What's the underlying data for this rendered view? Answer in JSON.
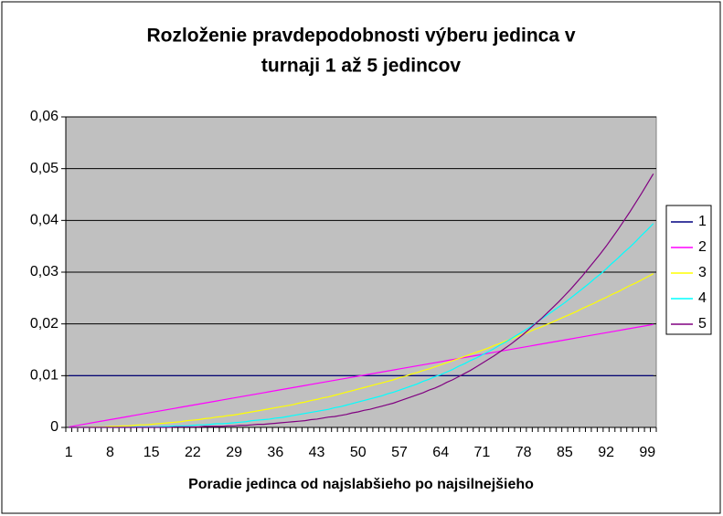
{
  "chart_data": {
    "type": "line",
    "title": [
      "Rozloženie pravdepodobnosti výberu jedinca v",
      "turnaji 1 až 5 jedincov"
    ],
    "x_label": "Poradie jedinca od najslabšieho po najsilnejšieho",
    "categories": [
      "1",
      null,
      null,
      null,
      null,
      null,
      null,
      "8",
      null,
      null,
      null,
      null,
      null,
      null,
      "15",
      null,
      null,
      null,
      null,
      null,
      null,
      "22",
      null,
      null,
      null,
      null,
      null,
      null,
      "29",
      null,
      null,
      null,
      null,
      null,
      null,
      "36",
      null,
      null,
      null,
      null,
      null,
      null,
      "43",
      null,
      null,
      null,
      null,
      null,
      null,
      "50",
      null,
      null,
      null,
      null,
      null,
      null,
      "57",
      null,
      null,
      null,
      null,
      null,
      null,
      "64",
      null,
      null,
      null,
      null,
      null,
      null,
      "71",
      null,
      null,
      null,
      null,
      null,
      null,
      "78",
      null,
      null,
      null,
      null,
      null,
      null,
      "85",
      null,
      null,
      null,
      null,
      null,
      null,
      "92",
      null,
      null,
      null,
      null,
      null,
      null,
      "99",
      null
    ],
    "ylim": [
      0,
      0.06
    ],
    "yticks": [
      0,
      {
        "value": 0.01,
        "label": "0,01"
      },
      {
        "value": 0.02,
        "label": "0,02"
      },
      {
        "value": 0.03,
        "label": "0,03"
      },
      {
        "value": 0.04,
        "label": "0,04"
      },
      {
        "value": 0.05,
        "label": "0,05"
      },
      {
        "value": 0.06,
        "label": "0,06"
      }
    ],
    "grid": true,
    "legend": "right",
    "series": [
      {
        "name": "1",
        "color": "#000080",
        "values": [
          0.01,
          0.01,
          0.01,
          0.01,
          0.01,
          0.01,
          0.01,
          0.01,
          0.01,
          0.01,
          0.01,
          0.01,
          0.01,
          0.01,
          0.01,
          0.01,
          0.01,
          0.01,
          0.01,
          0.01,
          0.01,
          0.01,
          0.01,
          0.01,
          0.01,
          0.01,
          0.01,
          0.01,
          0.01,
          0.01,
          0.01,
          0.01,
          0.01,
          0.01,
          0.01,
          0.01,
          0.01,
          0.01,
          0.01,
          0.01,
          0.01,
          0.01,
          0.01,
          0.01,
          0.01,
          0.01,
          0.01,
          0.01,
          0.01,
          0.01,
          0.01,
          0.01,
          0.01,
          0.01,
          0.01,
          0.01,
          0.01,
          0.01,
          0.01,
          0.01,
          0.01,
          0.01,
          0.01,
          0.01,
          0.01,
          0.01,
          0.01,
          0.01,
          0.01,
          0.01,
          0.01,
          0.01,
          0.01,
          0.01,
          0.01,
          0.01,
          0.01,
          0.01,
          0.01,
          0.01,
          0.01,
          0.01,
          0.01,
          0.01,
          0.01,
          0.01,
          0.01,
          0.01,
          0.01,
          0.01,
          0.01,
          0.01,
          0.01,
          0.01,
          0.01,
          0.01,
          0.01,
          0.01,
          0.01,
          0.01
        ]
      },
      {
        "name": "2",
        "color": "#ff00ff",
        "values": [
          0.0001,
          0.0003,
          0.0005,
          0.0007,
          0.0009,
          0.0011,
          0.0013,
          0.0015,
          0.0017,
          0.0019,
          0.0021,
          0.0023,
          0.0025,
          0.0027,
          0.0029,
          0.0031,
          0.0033,
          0.0035,
          0.0037,
          0.0039,
          0.0041,
          0.0043,
          0.0045,
          0.0047,
          0.0049,
          0.0051,
          0.0053,
          0.0055,
          0.0057,
          0.0059,
          0.0061,
          0.0063,
          0.0065,
          0.0067,
          0.0069,
          0.0071,
          0.0073,
          0.0075,
          0.0077,
          0.0079,
          0.0081,
          0.0083,
          0.0085,
          0.0087,
          0.0089,
          0.0091,
          0.0093,
          0.0095,
          0.0097,
          0.0099,
          0.0101,
          0.0103,
          0.0105,
          0.0107,
          0.0109,
          0.0111,
          0.0113,
          0.0115,
          0.0117,
          0.0119,
          0.0121,
          0.0123,
          0.0125,
          0.0127,
          0.0129,
          0.0131,
          0.0133,
          0.0135,
          0.0137,
          0.0139,
          0.0141,
          0.0143,
          0.0145,
          0.0147,
          0.0149,
          0.0151,
          0.0153,
          0.0155,
          0.0157,
          0.0159,
          0.0161,
          0.0163,
          0.0165,
          0.0167,
          0.0169,
          0.0171,
          0.0173,
          0.0175,
          0.0177,
          0.0179,
          0.0181,
          0.0183,
          0.0185,
          0.0187,
          0.0189,
          0.0191,
          0.0193,
          0.0195,
          0.0197,
          0.0199
        ]
      },
      {
        "name": "3",
        "color": "#ffff00",
        "values": [
          0,
          0,
          0,
          0,
          0.0001,
          0.0001,
          0.0001,
          0.0002,
          0.0002,
          0.0003,
          0.0003,
          0.0004,
          0.0005,
          0.0005,
          0.0006,
          0.0007,
          0.0008,
          0.0009,
          0.001,
          0.0011,
          0.0013,
          0.0014,
          0.0015,
          0.0017,
          0.0018,
          0.002,
          0.0021,
          0.0023,
          0.0024,
          0.0026,
          0.0028,
          0.003,
          0.0032,
          0.0034,
          0.0036,
          0.0038,
          0.004,
          0.0042,
          0.0044,
          0.0047,
          0.0049,
          0.0052,
          0.0054,
          0.0057,
          0.0059,
          0.0062,
          0.0065,
          0.0068,
          0.0071,
          0.0074,
          0.0077,
          0.008,
          0.0083,
          0.0086,
          0.0089,
          0.0092,
          0.0096,
          0.0099,
          0.0103,
          0.0106,
          0.011,
          0.0113,
          0.0117,
          0.0121,
          0.0125,
          0.0129,
          0.0133,
          0.0137,
          0.0141,
          0.0145,
          0.0149,
          0.0153,
          0.0158,
          0.0162,
          0.0167,
          0.0171,
          0.0176,
          0.018,
          0.0185,
          0.019,
          0.0194,
          0.0199,
          0.0204,
          0.0209,
          0.0214,
          0.0219,
          0.0224,
          0.023,
          0.0235,
          0.024,
          0.0246,
          0.0251,
          0.0257,
          0.0262,
          0.0268,
          0.0274,
          0.0279,
          0.0285,
          0.0291,
          0.0297
        ]
      },
      {
        "name": "4",
        "color": "#00ffff",
        "values": [
          0,
          0,
          0,
          0,
          0,
          0,
          0,
          0,
          0,
          0,
          0,
          0.0001,
          0.0001,
          0.0001,
          0.0001,
          0.0001,
          0.0002,
          0.0002,
          0.0003,
          0.0003,
          0.0003,
          0.0004,
          0.0005,
          0.0005,
          0.0006,
          0.0007,
          0.0007,
          0.0008,
          0.0009,
          0.001,
          0.0011,
          0.0013,
          0.0014,
          0.0015,
          0.0016,
          0.0018,
          0.0019,
          0.0021,
          0.0023,
          0.0025,
          0.0027,
          0.0029,
          0.0031,
          0.0033,
          0.0035,
          0.0038,
          0.004,
          0.0043,
          0.0046,
          0.0049,
          0.0052,
          0.0055,
          0.0058,
          0.0061,
          0.0065,
          0.0068,
          0.0072,
          0.0076,
          0.008,
          0.0084,
          0.0089,
          0.0093,
          0.0098,
          0.0102,
          0.0107,
          0.0112,
          0.0118,
          0.0123,
          0.0129,
          0.0134,
          0.014,
          0.0146,
          0.0152,
          0.0159,
          0.0165,
          0.0172,
          0.0179,
          0.0186,
          0.0193,
          0.0201,
          0.0209,
          0.0217,
          0.0225,
          0.0233,
          0.0241,
          0.025,
          0.0259,
          0.0268,
          0.0277,
          0.0287,
          0.0296,
          0.0306,
          0.0317,
          0.0327,
          0.0338,
          0.0348,
          0.0359,
          0.0371,
          0.0382,
          0.0394
        ]
      },
      {
        "name": "5",
        "color": "#800080",
        "values": [
          0,
          0,
          0,
          0,
          0,
          0,
          0,
          0,
          0,
          0,
          0,
          0,
          0,
          0,
          0,
          0,
          0,
          0,
          0.0001,
          0.0001,
          0.0001,
          0.0001,
          0.0001,
          0.0002,
          0.0002,
          0.0002,
          0.0002,
          0.0003,
          0.0003,
          0.0004,
          0.0004,
          0.0005,
          0.0006,
          0.0006,
          0.0007,
          0.0008,
          0.0009,
          0.001,
          0.0011,
          0.0012,
          0.0013,
          0.0015,
          0.0016,
          0.0018,
          0.002,
          0.0021,
          0.0023,
          0.0025,
          0.0028,
          0.003,
          0.0033,
          0.0035,
          0.0038,
          0.0041,
          0.0044,
          0.0047,
          0.0051,
          0.0055,
          0.0059,
          0.0063,
          0.0067,
          0.0072,
          0.0076,
          0.0081,
          0.0087,
          0.0092,
          0.0098,
          0.0104,
          0.011,
          0.0117,
          0.0124,
          0.0131,
          0.0138,
          0.0146,
          0.0154,
          0.0162,
          0.0171,
          0.018,
          0.019,
          0.02,
          0.021,
          0.0221,
          0.0232,
          0.0243,
          0.0255,
          0.0267,
          0.028,
          0.0293,
          0.0307,
          0.0321,
          0.0335,
          0.035,
          0.0366,
          0.0382,
          0.0399,
          0.0416,
          0.0434,
          0.0452,
          0.0471,
          0.049
        ]
      }
    ]
  }
}
